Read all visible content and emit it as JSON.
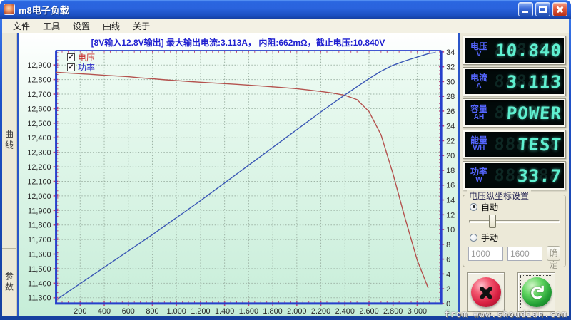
{
  "window": {
    "title": "m8电子负载"
  },
  "menu": {
    "items": [
      "文件",
      "工具",
      "设置",
      "曲线",
      "关于"
    ]
  },
  "sidebar": {
    "tabs": [
      {
        "label": "曲线"
      },
      {
        "label": "参数"
      }
    ]
  },
  "chart_data": {
    "type": "line",
    "title": "[8V输入12.8V输出] 最大输出电流:3.113A， 内阻:662mΩ，截止电压:10.840V",
    "grid": true,
    "legend_position": "top-left",
    "legend": [
      {
        "label": "电压",
        "color": "#c83030",
        "checked": true
      },
      {
        "label": "功率",
        "color": "#2828c8",
        "checked": true
      }
    ],
    "x_range": [
      0,
      3200
    ],
    "x_ticks": [
      {
        "v": 200,
        "label": "200"
      },
      {
        "v": 400,
        "label": "400"
      },
      {
        "v": 600,
        "label": "600"
      },
      {
        "v": 800,
        "label": "800"
      },
      {
        "v": 1000,
        "label": "1,000"
      },
      {
        "v": 1200,
        "label": "1,200"
      },
      {
        "v": 1400,
        "label": "1,400"
      },
      {
        "v": 1600,
        "label": "1,600"
      },
      {
        "v": 1800,
        "label": "1,800"
      },
      {
        "v": 2000,
        "label": "2,000"
      },
      {
        "v": 2200,
        "label": "2,200"
      },
      {
        "v": 2400,
        "label": "2,400"
      },
      {
        "v": 2600,
        "label": "2,600"
      },
      {
        "v": 2800,
        "label": "2,800"
      },
      {
        "v": 3000,
        "label": "3,000"
      }
    ],
    "left_axis": {
      "range": [
        11260,
        13000
      ],
      "ticks": [
        {
          "v": 12900,
          "label": "12,900"
        },
        {
          "v": 12800,
          "label": "12,800"
        },
        {
          "v": 12700,
          "label": "12,700"
        },
        {
          "v": 12600,
          "label": "12,600"
        },
        {
          "v": 12500,
          "label": "12,500"
        },
        {
          "v": 12400,
          "label": "12,400"
        },
        {
          "v": 12300,
          "label": "12,300"
        },
        {
          "v": 12200,
          "label": "12,200"
        },
        {
          "v": 12100,
          "label": "12,100"
        },
        {
          "v": 12000,
          "label": "12,000"
        },
        {
          "v": 11900,
          "label": "11,900"
        },
        {
          "v": 11800,
          "label": "11,800"
        },
        {
          "v": 11700,
          "label": "11,700"
        },
        {
          "v": 11600,
          "label": "11,600"
        },
        {
          "v": 11500,
          "label": "11,500"
        },
        {
          "v": 11400,
          "label": "11,400"
        },
        {
          "v": 11300,
          "label": "11,300"
        }
      ]
    },
    "right_axis": {
      "range": [
        0,
        34.2
      ],
      "ticks": [
        {
          "v": 34,
          "label": "34"
        },
        {
          "v": 32,
          "label": "32"
        },
        {
          "v": 30,
          "label": "30"
        },
        {
          "v": 28,
          "label": "28"
        },
        {
          "v": 26,
          "label": "26"
        },
        {
          "v": 24,
          "label": "24"
        },
        {
          "v": 22,
          "label": "22"
        },
        {
          "v": 20,
          "label": "20"
        },
        {
          "v": 18,
          "label": "18"
        },
        {
          "v": 16,
          "label": "16"
        },
        {
          "v": 14,
          "label": "14"
        },
        {
          "v": 12,
          "label": "12"
        },
        {
          "v": 10,
          "label": "10"
        },
        {
          "v": 8,
          "label": "8"
        },
        {
          "v": 6,
          "label": "6"
        },
        {
          "v": 4,
          "label": "4"
        },
        {
          "v": 2,
          "label": "2"
        },
        {
          "v": 0,
          "label": "0"
        }
      ]
    },
    "series": [
      {
        "name": "电压",
        "axis": "left",
        "color": "#b4524e",
        "x": [
          0,
          100,
          200,
          300,
          400,
          500,
          600,
          700,
          800,
          900,
          1000,
          1100,
          1200,
          1300,
          1400,
          1500,
          1600,
          1700,
          1800,
          1900,
          2000,
          2100,
          2200,
          2300,
          2400,
          2500,
          2600,
          2700,
          2800,
          2900,
          3000,
          3050,
          3090
        ],
        "y": [
          12851,
          12845,
          12840,
          12835,
          12830,
          12825,
          12820,
          12812,
          12806,
          12799,
          12793,
          12787,
          12782,
          12777,
          12772,
          12767,
          12762,
          12756,
          12750,
          12744,
          12737,
          12728,
          12718,
          12707,
          12692,
          12662,
          12580,
          12420,
          12150,
          11845,
          11560,
          11455,
          11370
        ]
      },
      {
        "name": "功率",
        "axis": "right",
        "color": "#3a57b5",
        "x": [
          20,
          200,
          400,
          600,
          800,
          1000,
          1200,
          1400,
          1600,
          1800,
          2000,
          2200,
          2400,
          2500,
          2600,
          2700,
          2800,
          2900,
          3000,
          3100,
          3150
        ],
        "y": [
          0.7,
          2.7,
          4.9,
          7.1,
          9.3,
          11.6,
          13.9,
          16.3,
          18.7,
          21.1,
          23.5,
          25.9,
          28.2,
          29.3,
          30.4,
          31.4,
          32.2,
          32.8,
          33.3,
          33.8,
          33.9
        ]
      }
    ]
  },
  "readout_ghost": "888888",
  "readouts": [
    {
      "label": "电压",
      "unit": "V",
      "value": "10.840"
    },
    {
      "label": "电流",
      "unit": "A",
      "value": "3.113"
    },
    {
      "label": "容量",
      "unit": "AH",
      "value": "POWER"
    },
    {
      "label": "能量",
      "unit": "WH",
      "value": "TEST"
    },
    {
      "label": "功率",
      "unit": "W",
      "value": "33.7"
    }
  ],
  "axis_settings": {
    "group_title": "电压纵坐标设置",
    "auto_label": "自动",
    "auto_selected": true,
    "manual_label": "手动",
    "manual_selected": false,
    "min_value": "1000",
    "max_value": "1600",
    "ok_label": "确定",
    "slider_percent": 22
  },
  "watermark": "from www.shoudian.com",
  "colors": {
    "lcd_digit": "#5ff0d0",
    "lcd_label": "#5566ff",
    "voltage_series": "#b4524e",
    "power_series": "#3a57b5",
    "titlebar_blue": "#2a63dd"
  }
}
